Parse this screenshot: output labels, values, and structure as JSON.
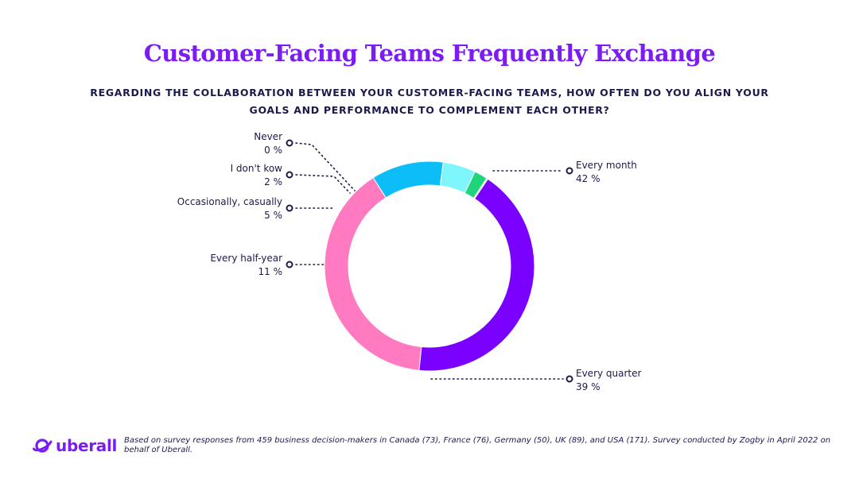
{
  "header": {
    "title": "Customer-Facing Teams Frequently Exchange",
    "question": "REGARDING THE COLLABORATION BETWEEN YOUR CUSTOMER-FACING TEAMS, HOW OFTEN DO YOU ALIGN YOUR GOALS AND PERFORMANCE TO COMPLEMENT EACH OTHER?"
  },
  "chart_data": {
    "type": "pie",
    "variant": "donut",
    "title": "Customer-Facing Teams Frequently Exchange",
    "slices": [
      {
        "label": "Every month",
        "value": 42,
        "value_label": "42 %",
        "color": "#7a00ff"
      },
      {
        "label": "Every quarter",
        "value": 39,
        "value_label": "39 %",
        "color": "#ff7ac0"
      },
      {
        "label": "Every half-year",
        "value": 11,
        "value_label": "11 %",
        "color": "#0cbdf7"
      },
      {
        "label": "Occasionally, casually",
        "value": 5,
        "value_label": "5 %",
        "color": "#7ef6fb"
      },
      {
        "label": "I don't kow",
        "value": 2,
        "value_label": "2 %",
        "color": "#1ed47c"
      },
      {
        "label": "Never",
        "value": 0,
        "value_label": "0 %",
        "color": "#c8ff6a"
      }
    ],
    "start_angle_deg": 33,
    "direction": "clockwise",
    "label_line_style": "dotted",
    "colors": {
      "label_text": "#1c1a4a",
      "leader_line": "#1c1a4a"
    }
  },
  "footer": {
    "logo_text": "uberall",
    "note": "Based on survey responses from 459 business decision-makers in Canada (73), France (76), Germany (50), UK (89), and USA (171). Survey conducted by Zogby in April 2022 on behalf of Uberall."
  },
  "colors": {
    "brand_purple": "#7a1cf2",
    "text_navy": "#1c1a4a"
  },
  "icons": {
    "logo": "uberall-planet-logo-icon"
  }
}
